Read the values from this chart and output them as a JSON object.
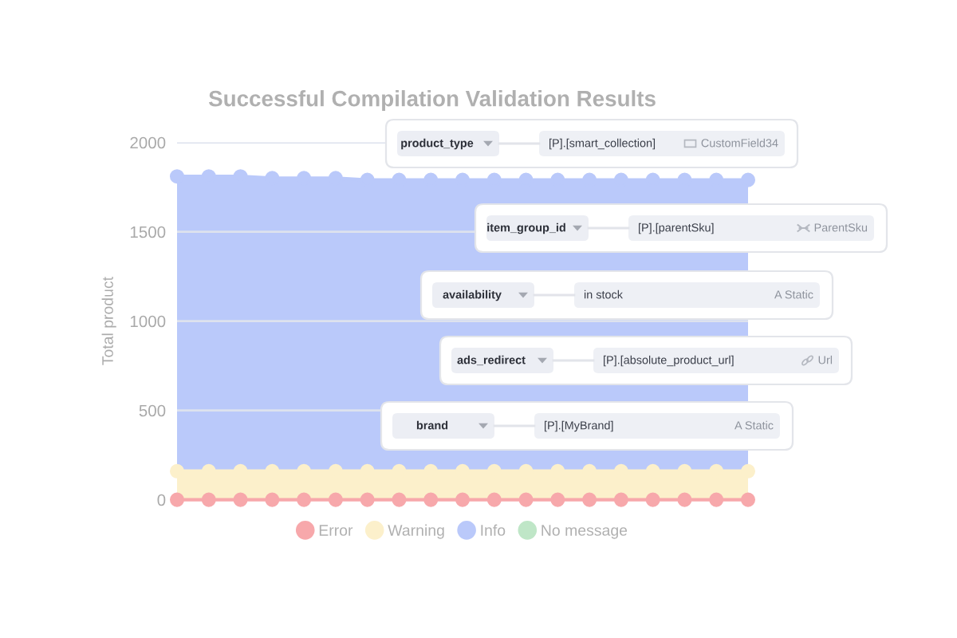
{
  "chart_data": [
    {
      "type": "area",
      "stacked": true,
      "title": "Successful Compilation Validation Results",
      "ylabel": "Total product",
      "categories": [
        null,
        null,
        null,
        null,
        null,
        null,
        null,
        null,
        null,
        null,
        null,
        null,
        null,
        null,
        null,
        null,
        null,
        null,
        null
      ],
      "ylim": [
        0,
        2000
      ],
      "yticks": [
        0,
        500,
        1000,
        1500,
        2000
      ],
      "grid": "y",
      "legend": "bottom",
      "marker": "circle",
      "tick_labels": "y",
      "series": [
        {
          "name": "Error",
          "type": "line",
          "color": "#f7a8ab",
          "values": [
            0,
            0,
            0,
            0,
            0,
            0,
            0,
            0,
            0,
            0,
            0,
            0,
            0,
            0,
            0,
            0,
            0,
            0,
            0
          ]
        },
        {
          "name": "Warning",
          "color": "#fcf0cb",
          "values": [
            160,
            160,
            160,
            160,
            160,
            160,
            160,
            160,
            160,
            160,
            160,
            160,
            160,
            160,
            160,
            160,
            160,
            160,
            160
          ]
        },
        {
          "name": "Info",
          "color": "#bac9fa",
          "values": [
            1650,
            1650,
            1650,
            1640,
            1640,
            1640,
            1630,
            1630,
            1630,
            1630,
            1630,
            1630,
            1630,
            1630,
            1630,
            1630,
            1630,
            1630,
            1630
          ]
        },
        {
          "name": "No message",
          "color": "#bfe6c7",
          "values": [
            null,
            null,
            null,
            null,
            null,
            null,
            null,
            null,
            null,
            null,
            null,
            null,
            null,
            null,
            null,
            null,
            null,
            null,
            null
          ]
        }
      ]
    },
    {
      "type": "other",
      "annotations": [
        "product_type",
        "[P].[smart_collection]",
        "CustomField34",
        "item_group_id",
        "[P].[parentSku]",
        "ParentSku",
        "availability",
        "in stock",
        "A Static",
        "ads_redirect",
        "[P].[absolute_product_url]",
        "Url",
        "brand",
        "[P].[MyBrand]",
        "A Static"
      ]
    }
  ]
}
